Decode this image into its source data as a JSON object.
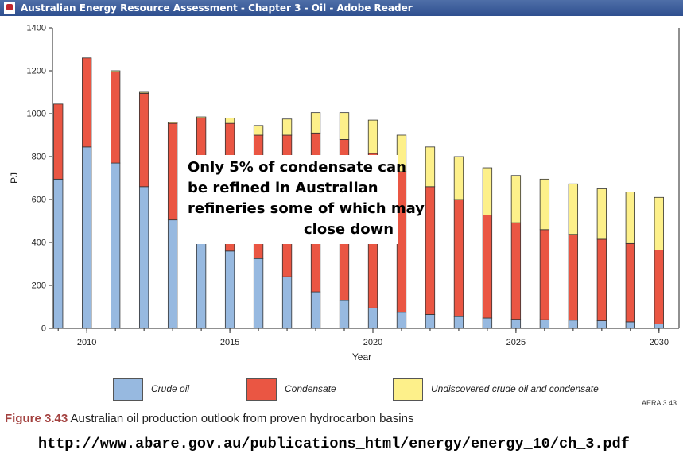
{
  "window": {
    "title": "Australian Energy Resource Assessment - Chapter 3 - Oil - Adobe Reader",
    "icon": "pdf-reader-icon"
  },
  "colors": {
    "crude": "#97b9e0",
    "condensate": "#ea5643",
    "undiscovered": "#fdf08a",
    "caption_accent": "#a3413f"
  },
  "chart_data": {
    "type": "bar",
    "stacked": true,
    "xlabel": "Year",
    "ylabel": "PJ",
    "ylim": [
      0,
      1400
    ],
    "yticks": [
      "0",
      "200",
      "400",
      "600",
      "800",
      "1000",
      "1200",
      "1400"
    ],
    "xlim": [
      2008.8,
      2030.7
    ],
    "xticks": [
      "2010",
      "2015",
      "2020",
      "2025",
      "2030"
    ],
    "categories": [
      2009,
      2010,
      2011,
      2012,
      2013,
      2014,
      2015,
      2016,
      2017,
      2018,
      2019,
      2020,
      2021,
      2022,
      2023,
      2024,
      2025,
      2026,
      2027,
      2028,
      2029,
      2030
    ],
    "series": [
      {
        "name": "Crude oil",
        "values": [
          695,
          845,
          770,
          660,
          505,
          395,
          360,
          325,
          240,
          170,
          130,
          95,
          75,
          65,
          55,
          48,
          42,
          40,
          38,
          35,
          30,
          20
        ]
      },
      {
        "name": "Condensate",
        "values": [
          350,
          415,
          425,
          435,
          450,
          585,
          595,
          575,
          660,
          740,
          750,
          720,
          655,
          595,
          545,
          480,
          450,
          420,
          400,
          380,
          365,
          345
        ]
      },
      {
        "name": "Undiscovered crude oil and condensate",
        "values": [
          0,
          0,
          5,
          5,
          5,
          5,
          25,
          45,
          75,
          95,
          125,
          155,
          170,
          185,
          200,
          220,
          220,
          235,
          235,
          235,
          240,
          245
        ]
      }
    ],
    "annotation": {
      "line1": "Only 5% of condensate can",
      "line2": "be refined in Australian",
      "line3": "refineries some of which may",
      "line4": "close down"
    },
    "source_code": "AERA 3.43"
  },
  "caption": {
    "figure": "Figure 3.43",
    "text": " Australian oil production outlook from proven hydrocarbon basins"
  },
  "url": "http://www.abare.gov.au/publications_html/energy/energy_10/ch_3.pdf"
}
